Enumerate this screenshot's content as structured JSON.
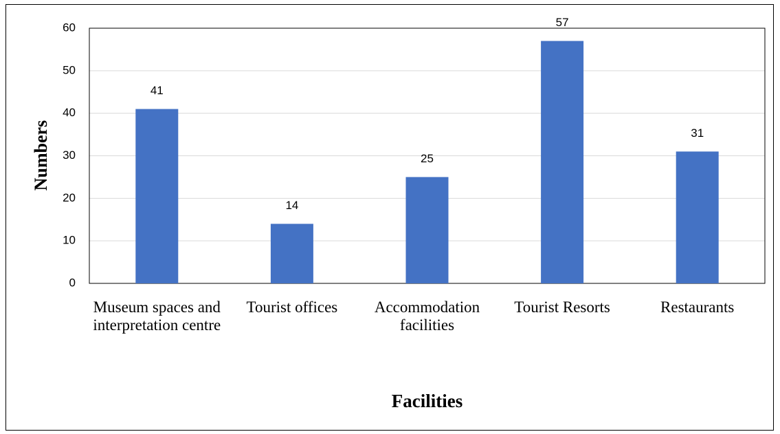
{
  "chart_data": {
    "type": "bar",
    "categories": [
      "Museum spaces and interpretation centre",
      "Tourist offices",
      "Accommodation facilities",
      "Tourist Resorts",
      "Restaurants"
    ],
    "values": [
      41,
      14,
      25,
      57,
      31
    ],
    "color": "#4472c4",
    "x_label": "Facilities",
    "y_label": "Numbers",
    "ylim": [
      0,
      60
    ],
    "yticks": [
      0,
      10,
      20,
      30,
      40,
      50,
      60
    ],
    "grid": true
  }
}
